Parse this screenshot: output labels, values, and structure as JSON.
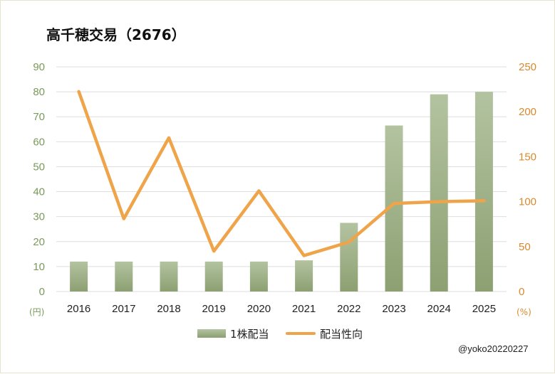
{
  "chart_data": {
    "type": "bar+line",
    "title": "高千穂交易（2676）",
    "categories": [
      "2016",
      "2017",
      "2018",
      "2019",
      "2020",
      "2021",
      "2022",
      "2023",
      "2024",
      "2025"
    ],
    "series": [
      {
        "name": "1株配当",
        "type": "bar",
        "axis": "left",
        "color": "#9aae7e",
        "values": [
          12,
          12,
          12,
          12,
          12,
          12.5,
          27.5,
          66.5,
          79,
          80
        ]
      },
      {
        "name": "配当性向",
        "type": "line",
        "axis": "right",
        "color": "#f0a44a",
        "values": [
          222.5,
          81,
          171,
          45,
          112,
          40,
          55,
          98,
          100,
          101
        ]
      }
    ],
    "y_left": {
      "min": 0,
      "max": 90,
      "step": 10,
      "unit": "(円)",
      "ticks": [
        "0",
        "10",
        "20",
        "30",
        "40",
        "50",
        "60",
        "70",
        "80",
        "90"
      ]
    },
    "y_right": {
      "min": 0,
      "max": 250,
      "step": 50,
      "unit": "(%)",
      "ticks": [
        "0",
        "50",
        "100",
        "150",
        "200",
        "250"
      ]
    },
    "grid": true,
    "legend": {
      "position": "bottom",
      "items": [
        "1株配当",
        "配当性向"
      ]
    }
  },
  "credit": "@yoko20220227"
}
